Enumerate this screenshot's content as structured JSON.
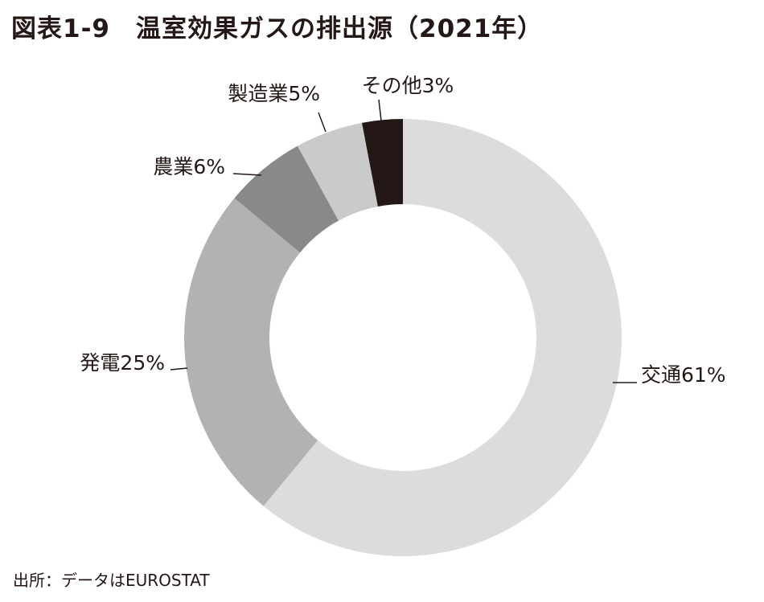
{
  "figure": {
    "title": "図表1-9　温室効果ガスの排出源（2021年）",
    "source": "出所：データはEUROSTAT"
  },
  "chart_data": {
    "type": "pie",
    "style": "donut",
    "start": "12 o'clock, clockwise",
    "slices": [
      {
        "label": "交通",
        "value": 61,
        "display": "交通61%",
        "color": "#dcdcdc"
      },
      {
        "label": "発電",
        "value": 25,
        "display": "発電25%",
        "color": "#b2b2b2"
      },
      {
        "label": "農業",
        "value": 6,
        "display": "農業6%",
        "color": "#898989"
      },
      {
        "label": "製造業",
        "value": 5,
        "display": "製造業5%",
        "color": "#c9caca"
      },
      {
        "label": "その他",
        "value": 3,
        "display": "その他3%",
        "color": "#231815"
      }
    ]
  }
}
